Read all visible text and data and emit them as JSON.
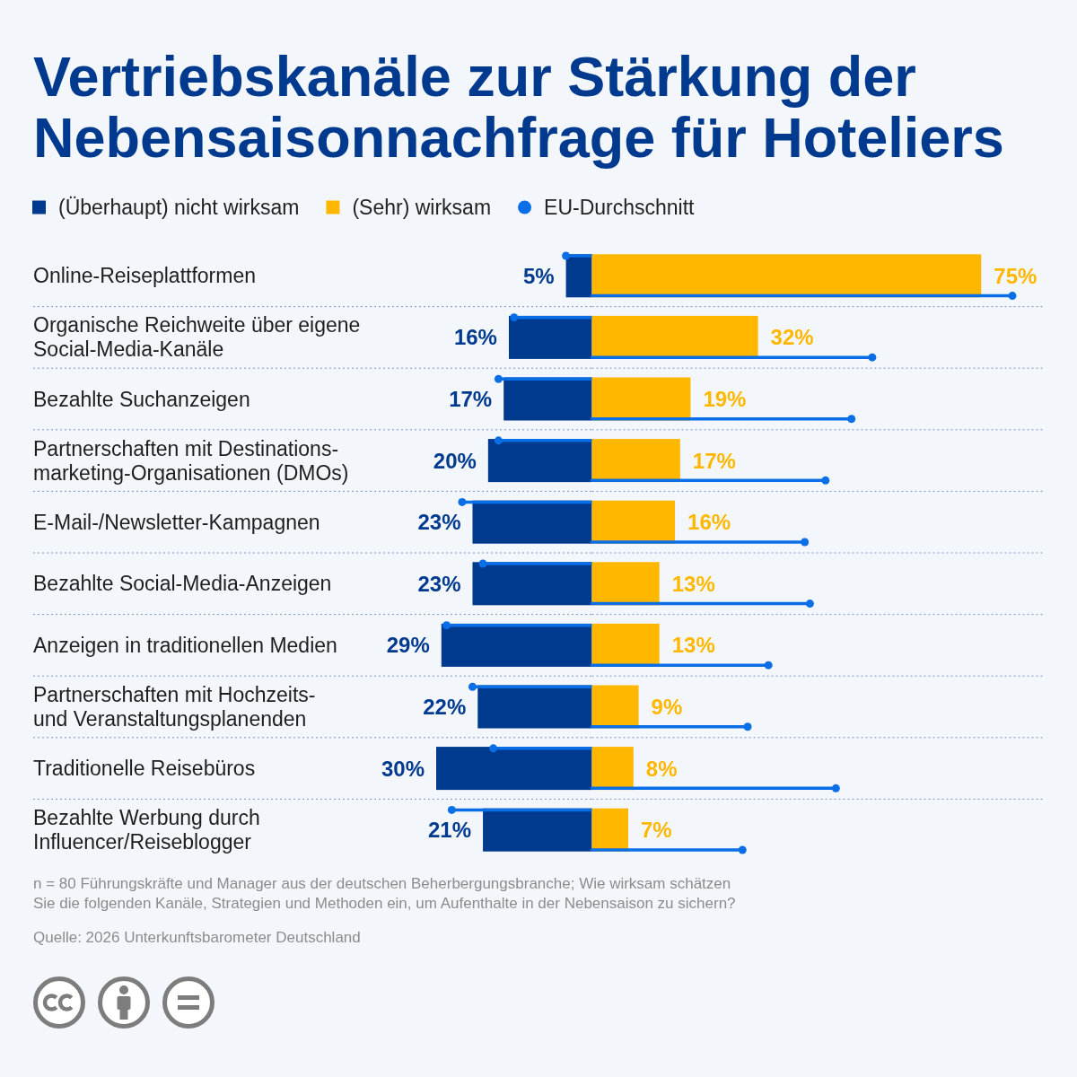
{
  "chart_data": [
    {
      "type": "bar",
      "orientation": "horizontal",
      "title": "Vertriebskanäle zur Stärkung der\nNebensaisonnachfrage für Hoteliers",
      "categories": [
        "Online-Reiseplattformen",
        "Organische Reichweite über eigene\nSocial-Media-Kanäle",
        "Bezahlte Suchanzeigen",
        "Partnerschaften mit Destinations-\nmarketing-Organisationen (DMOs)",
        "E-Mail-/Newsletter-Kampagnen",
        "Bezahlte Social-Media-Anzeigen",
        "Anzeigen in traditionellen Medien",
        "Partnerschaften mit Hochzeits-\nund Veranstaltungsplanenden",
        "Traditionelle Reisebüros",
        "Bezahlte Werbung durch\nInfluencer/Reiseblogger"
      ],
      "xlim": [
        30,
        0
      ],
      "series": [
        {
          "name": "(Überhaupt) nicht wirksam",
          "color": "#003a8f",
          "values": [
            5,
            16,
            17,
            20,
            23,
            23,
            29,
            22,
            30,
            21
          ],
          "value_labels": [
            "5%",
            "16%",
            "17%",
            "20%",
            "23%",
            "23%",
            "29%",
            "22%",
            "30%",
            "21%"
          ]
        },
        {
          "type": "lollipop",
          "color": "#0a6ee6",
          "values": [
            5,
            15,
            18,
            18,
            25,
            21,
            28,
            23,
            19,
            27
          ]
        }
      ],
      "legend": "top left",
      "grid": "y",
      "tick_labels": "y",
      "annotations": [
        "n = 80 Führungskräfte und Manager aus der deutschen Beherbergungsbranche; Wie wirksam schätzen\nSie die folgenden Kanäle, Strategien und Methoden ein, um Aufenthalte in der Nebensaison zu sichern?",
        "Quelle: 2026 Unterkunftsbarometer Deutschland"
      ]
    },
    {
      "type": "bar",
      "orientation": "horizontal",
      "categories": [
        null,
        null,
        null,
        null,
        null,
        null,
        null,
        null,
        null,
        null
      ],
      "xlim": [
        0,
        81
      ],
      "series": [
        {
          "name": "(Sehr) wirksam",
          "color": "#ffb700",
          "values": [
            75,
            32,
            19,
            17,
            16,
            13,
            13,
            9,
            8,
            7
          ],
          "value_labels": [
            "75%",
            "32%",
            "19%",
            "17%",
            "16%",
            "13%",
            "13%",
            "9%",
            "8%",
            "7%"
          ]
        },
        {
          "name": "EU-Durchschnitt",
          "type": "lollipop",
          "color": "#0a6ee6",
          "values": [
            81,
            54,
            50,
            45,
            41,
            42,
            34,
            30,
            47,
            29
          ]
        }
      ],
      "legend": "top left",
      "grid": "y",
      "tick_labels": false
    }
  ]
}
